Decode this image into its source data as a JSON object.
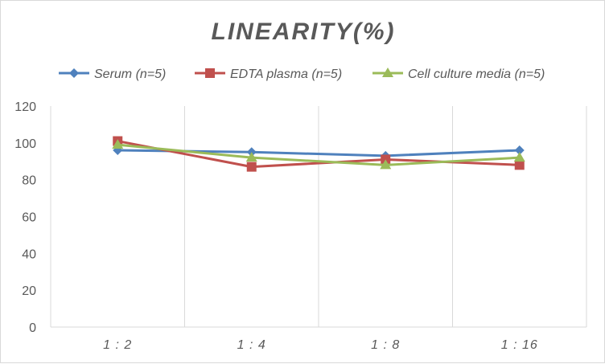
{
  "chart_data": {
    "type": "line",
    "title": "LINEARITY(%)",
    "categories": [
      "1:2",
      "1:4",
      "1:8",
      "1:16"
    ],
    "ylim": [
      0,
      120
    ],
    "yticks": [
      0,
      20,
      40,
      60,
      80,
      100,
      120
    ],
    "grid": "vertical category gridlines",
    "legend_position": "top",
    "series": [
      {
        "name": "Serum (n=5)",
        "values": [
          96,
          95,
          93,
          96
        ],
        "color": "#4f81bd",
        "marker": "diamond"
      },
      {
        "name": "EDTA plasma (n=5)",
        "values": [
          101,
          87,
          91,
          88
        ],
        "color": "#c0504d",
        "marker": "square"
      },
      {
        "name": "Cell culture media (n=5)",
        "values": [
          99,
          92,
          88,
          92
        ],
        "color": "#9bbb59",
        "marker": "triangle"
      }
    ]
  }
}
